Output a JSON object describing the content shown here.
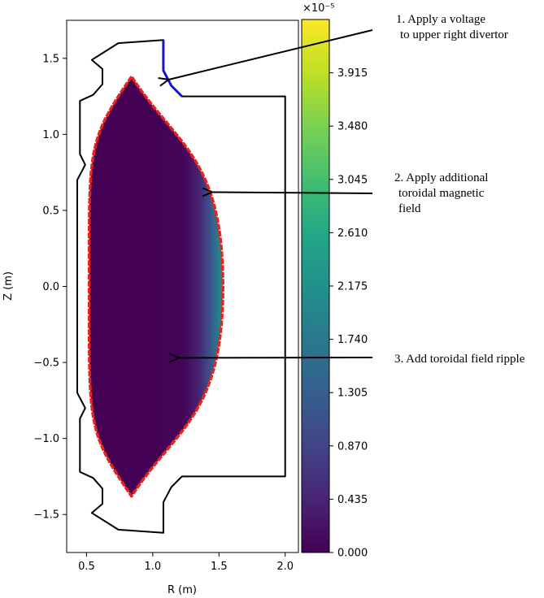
{
  "chart_data": {
    "type": "heatmap",
    "xlabel": "R (m)",
    "ylabel": "Z (m)",
    "xlim": [
      0.35,
      2.1
    ],
    "ylim": [
      -1.75,
      1.75
    ],
    "x_ticks": [
      "0.5",
      "1.0",
      "1.5",
      "2.0"
    ],
    "y_ticks": [
      "−1.5",
      "−1.0",
      "−0.5",
      "0.0",
      "0.5",
      "1.0",
      "1.5"
    ],
    "colorbar": {
      "colormap": "viridis",
      "range": [
        0,
        4.35e-05
      ],
      "exponent_label": "×10⁻⁵",
      "ticks": [
        "0.000",
        "0.435",
        "0.870",
        "1.305",
        "1.740",
        "2.175",
        "2.610",
        "3.045",
        "3.480",
        "3.915"
      ]
    },
    "vessel_outline": [
      [
        1.08,
        1.62
      ],
      [
        0.74,
        1.6
      ],
      [
        0.54,
        1.49
      ],
      [
        0.62,
        1.43
      ],
      [
        0.62,
        1.33
      ],
      [
        0.55,
        1.26
      ],
      [
        0.45,
        1.22
      ],
      [
        0.45,
        0.87
      ],
      [
        0.49,
        0.8
      ],
      [
        0.43,
        0.7
      ],
      [
        0.43,
        -0.7
      ],
      [
        0.49,
        -0.8
      ],
      [
        0.45,
        -0.87
      ],
      [
        0.45,
        -1.22
      ],
      [
        0.55,
        -1.26
      ],
      [
        0.62,
        -1.33
      ],
      [
        0.62,
        -1.43
      ],
      [
        0.54,
        -1.49
      ],
      [
        0.74,
        -1.6
      ],
      [
        1.08,
        -1.62
      ],
      [
        1.08,
        -1.42
      ],
      [
        1.14,
        -1.32
      ],
      [
        1.22,
        -1.25
      ],
      [
        2.0,
        -1.25
      ],
      [
        2.0,
        1.25
      ],
      [
        1.22,
        1.25
      ],
      [
        1.14,
        1.32
      ],
      [
        1.08,
        1.42
      ]
    ],
    "plasma_boundary": {
      "z_top": 1.38,
      "r_top": 0.84,
      "z_bottom": -1.38,
      "r_bottom": 0.84,
      "r_inner": 0.52,
      "r_outer": 1.53,
      "color": "#e8231c"
    },
    "upper_divertor": {
      "points": [
        [
          1.08,
          1.62
        ],
        [
          1.08,
          1.42
        ],
        [
          1.14,
          1.32
        ],
        [
          1.22,
          1.25
        ]
      ],
      "color": "#1414d2"
    },
    "annotations": [
      {
        "lines": [
          "1. Apply a voltage",
          "to upper right divertor"
        ],
        "target": [
          1.12,
          1.36
        ]
      },
      {
        "lines": [
          "2. Apply additional",
          "toroidal magnetic",
          "field"
        ],
        "target": [
          1.45,
          0.62
        ]
      },
      {
        "lines": [
          "3. Add toroidal field ripple"
        ],
        "target": [
          1.2,
          -0.47
        ]
      }
    ]
  }
}
